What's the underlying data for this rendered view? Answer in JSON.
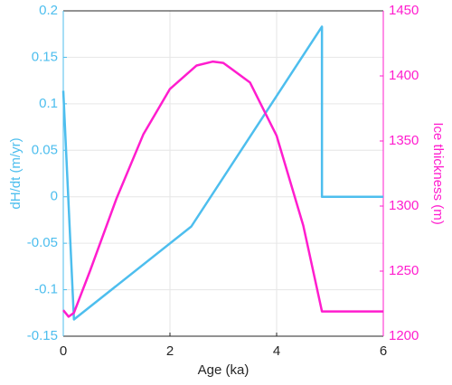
{
  "chart_data": {
    "type": "line",
    "xlabel": "Age (ka)",
    "ylabel": "dH/dt (m/yr)",
    "y2label": "Ice thickness (m)",
    "xlim": [
      0,
      6
    ],
    "xticks": [
      0,
      2,
      4,
      6
    ],
    "ylim": [
      -0.15,
      0.2
    ],
    "yticks": [
      -0.15,
      -0.1,
      -0.05,
      0,
      0.05,
      0.1,
      0.15,
      0.2
    ],
    "y2lim": [
      1200,
      1450
    ],
    "y2ticks": [
      1200,
      1250,
      1300,
      1350,
      1400,
      1450
    ],
    "grid": true,
    "series": [
      {
        "name": "dH/dt",
        "color": "#4dbeee",
        "axis": "y",
        "x": [
          0,
          0.2,
          2.4,
          4.85,
          4.85,
          6
        ],
        "values": [
          0.114,
          -0.132,
          -0.032,
          0.183,
          0,
          0
        ]
      },
      {
        "name": "Ice thickness",
        "color": "#ff1dce",
        "axis": "y2",
        "x": [
          0,
          0.1,
          0.2,
          0.5,
          1,
          1.5,
          2,
          2.5,
          2.8,
          3,
          3.5,
          4,
          4.5,
          4.85,
          6
        ],
        "values": [
          1220,
          1215,
          1218,
          1250,
          1306,
          1355,
          1390,
          1408,
          1411,
          1410,
          1395,
          1354,
          1285,
          1219,
          1219
        ]
      }
    ]
  }
}
